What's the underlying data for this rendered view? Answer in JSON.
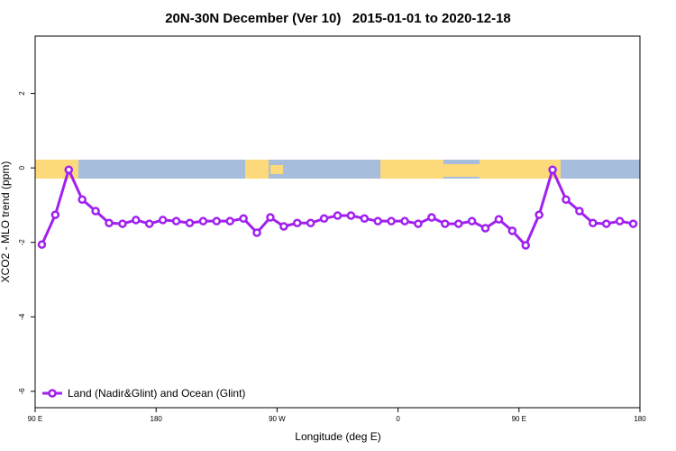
{
  "chart_data": {
    "type": "line",
    "title": "20N-30N December (Ver 10)   2015-01-01 to 2020-12-18",
    "x_label": "Longitude (deg E)",
    "y_label": "XCO2 - MLO trend (ppm)",
    "x": [
      95,
      105,
      115,
      125,
      135,
      145,
      155,
      165,
      175,
      185,
      195,
      205,
      215,
      225,
      235,
      245,
      255,
      265,
      275,
      285,
      295,
      305,
      315,
      325,
      335,
      345,
      355,
      365,
      375,
      385,
      395,
      405,
      415,
      425,
      435,
      445,
      455,
      465,
      475,
      485,
      495,
      505,
      515,
      525,
      535
    ],
    "series": [
      {
        "name": "Land (Nadir&Glint) and Ocean (Glint)",
        "color": "#a020f0",
        "values": [
          -2.06,
          -1.26,
          -0.05,
          -0.85,
          -1.16,
          -1.48,
          -1.5,
          -1.4,
          -1.5,
          -1.4,
          -1.43,
          -1.48,
          -1.43,
          -1.43,
          -1.43,
          -1.36,
          -1.74,
          -1.33,
          -1.57,
          -1.48,
          -1.48,
          -1.36,
          -1.28,
          -1.28,
          -1.36,
          -1.43,
          -1.43,
          -1.43,
          -1.5,
          -1.33,
          -1.5,
          -1.5,
          -1.43,
          -1.62,
          -1.38,
          -1.69,
          -2.08,
          -1.26,
          -0.05,
          -0.85,
          -1.16,
          -1.48,
          -1.5,
          -1.43,
          -1.5
        ]
      }
    ],
    "xlim": [
      90,
      540
    ],
    "ylim": [
      -6.44,
      3.54
    ],
    "xticks": [
      {
        "value": 90,
        "label": "90 E"
      },
      180,
      {
        "value": 270,
        "label": "90 W"
      },
      {
        "value": 360,
        "label": "0"
      },
      {
        "value": 450,
        "label": "90 E"
      },
      {
        "value": 540,
        "label": "180"
      }
    ],
    "yticks": [
      -6,
      -4,
      -2,
      0,
      2
    ],
    "legend": "bottom-left"
  }
}
